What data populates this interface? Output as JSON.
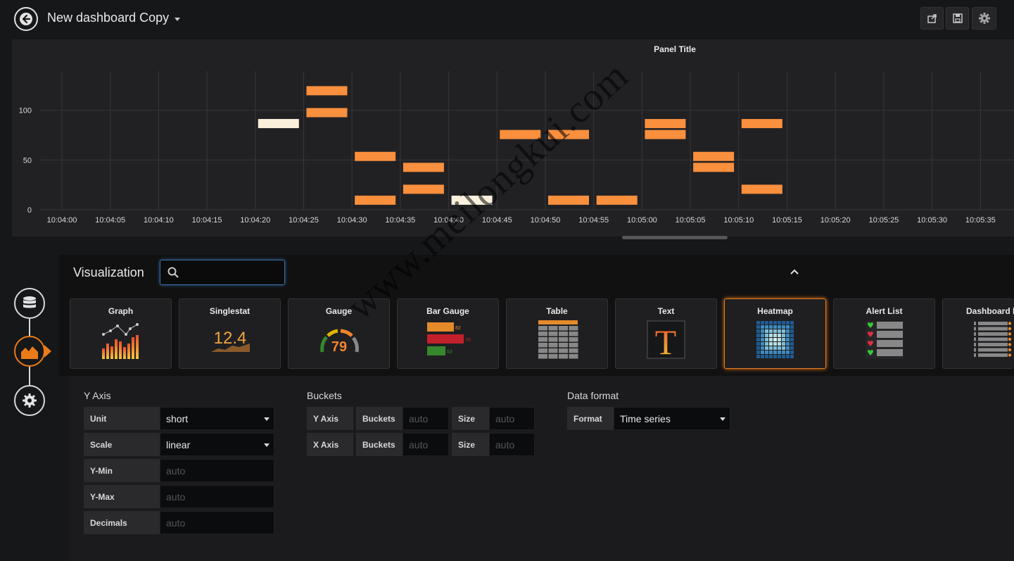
{
  "header": {
    "title": "New dashboard Copy",
    "buttons": [
      "share-icon",
      "save-icon",
      "gear-icon"
    ]
  },
  "panel": {
    "title": "Panel Title"
  },
  "chart_data": {
    "type": "heatmap",
    "title": "Panel Title",
    "y_ticks": [
      "0",
      "50",
      "100"
    ],
    "ylim": [
      0,
      100
    ],
    "x_ticks": [
      "10:04:00",
      "10:04:05",
      "10:04:10",
      "10:04:15",
      "10:04:20",
      "10:04:25",
      "10:04:30",
      "10:04:35",
      "10:04:40",
      "10:04:45",
      "10:04:50",
      "10:04:55",
      "10:05:00",
      "10:05:05",
      "10:05:10",
      "10:05:15",
      "10:05:20",
      "10:05:25",
      "10:05:30",
      "10:05:35"
    ],
    "cells": [
      {
        "x": "10:04:20",
        "y": 82,
        "color": "#fbf0dc"
      },
      {
        "x": "10:04:25",
        "y": 115,
        "color": "#fa8f3d"
      },
      {
        "x": "10:04:25",
        "y": 93,
        "color": "#fa8f3d"
      },
      {
        "x": "10:04:30",
        "y": 49,
        "color": "#fa8f3d"
      },
      {
        "x": "10:04:30",
        "y": 5,
        "color": "#fa8f3d"
      },
      {
        "x": "10:04:35",
        "y": 38,
        "color": "#fa8f3d"
      },
      {
        "x": "10:04:35",
        "y": 16,
        "color": "#fa8f3d"
      },
      {
        "x": "10:04:40",
        "y": 5,
        "color": "#fbf0dc"
      },
      {
        "x": "10:04:45",
        "y": 71,
        "color": "#fa8f3d"
      },
      {
        "x": "10:04:50",
        "y": 71,
        "color": "#fa8f3d"
      },
      {
        "x": "10:04:50",
        "y": 5,
        "color": "#fa8f3d"
      },
      {
        "x": "10:04:55",
        "y": 5,
        "color": "#fa8f3d"
      },
      {
        "x": "10:05:00",
        "y": 82,
        "color": "#fa8f3d"
      },
      {
        "x": "10:05:00",
        "y": 71,
        "color": "#fa8f3d"
      },
      {
        "x": "10:05:05",
        "y": 49,
        "color": "#fa8f3d"
      },
      {
        "x": "10:05:05",
        "y": 38,
        "color": "#fa8f3d"
      },
      {
        "x": "10:05:10",
        "y": 82,
        "color": "#fa8f3d"
      },
      {
        "x": "10:05:10",
        "y": 16,
        "color": "#fa8f3d"
      }
    ],
    "grid": true
  },
  "viz": {
    "label": "Visualization",
    "search_value": "",
    "types": [
      {
        "name": "Graph",
        "icon": "graph-icon",
        "selected": false
      },
      {
        "name": "Singlestat",
        "icon": "singlestat-icon",
        "value_text": "12.4",
        "selected": false
      },
      {
        "name": "Gauge",
        "icon": "gauge-icon",
        "value_text": "79",
        "selected": false
      },
      {
        "name": "Bar Gauge",
        "icon": "bar-gauge-icon",
        "values": [
          "82",
          "76",
          "53"
        ],
        "selected": false
      },
      {
        "name": "Table",
        "icon": "table-icon",
        "selected": false
      },
      {
        "name": "Text",
        "icon": "text-icon",
        "glyph": "T",
        "selected": false
      },
      {
        "name": "Heatmap",
        "icon": "heatmap-icon",
        "selected": true
      },
      {
        "name": "Alert List",
        "icon": "alert-list-icon",
        "selected": false
      },
      {
        "name": "Dashboard list",
        "icon": "dashboard-list-icon",
        "selected": false
      }
    ]
  },
  "sidebar": {
    "steps": [
      "queries-icon",
      "visualization-icon",
      "general-settings-icon"
    ]
  },
  "options": {
    "y_axis": {
      "title": "Y Axis",
      "unit_label": "Unit",
      "unit_value": "short",
      "scale_label": "Scale",
      "scale_value": "linear",
      "ymin_label": "Y-Min",
      "ymin_placeholder": "auto",
      "ymax_label": "Y-Max",
      "ymax_placeholder": "auto",
      "decimals_label": "Decimals",
      "decimals_placeholder": "auto"
    },
    "buckets": {
      "title": "Buckets",
      "y_axis_label": "Y Axis",
      "x_axis_label": "X Axis",
      "buckets_label": "Buckets",
      "size_label": "Size",
      "placeholder": "auto"
    },
    "data_format": {
      "title": "Data format",
      "format_label": "Format",
      "format_value": "Time series"
    }
  },
  "watermark": "www.meilongkui.com"
}
